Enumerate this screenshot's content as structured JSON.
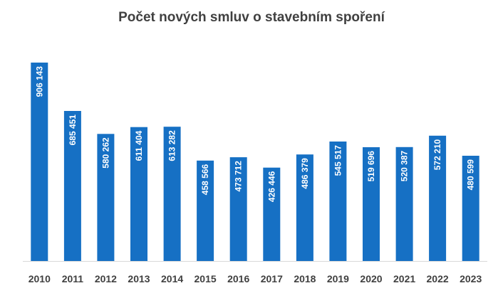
{
  "chart_data": {
    "type": "bar",
    "title": "Počet nových smluv o stavebním spoření",
    "xlabel": "",
    "ylabel": "",
    "categories": [
      "2010",
      "2011",
      "2012",
      "2013",
      "2014",
      "2015",
      "2016",
      "2017",
      "2018",
      "2019",
      "2020",
      "2021",
      "2022",
      "2023"
    ],
    "values": [
      906143,
      685451,
      580262,
      611404,
      613282,
      458566,
      473712,
      426446,
      486379,
      545517,
      519696,
      520387,
      572210,
      480599
    ],
    "value_labels": [
      "906 143",
      "685 451",
      "580 262",
      "611 404",
      "613 282",
      "458 566",
      "473 712",
      "426 446",
      "486 379",
      "545 517",
      "519 696",
      "520 387",
      "572 210",
      "480 599"
    ],
    "ylim": [
      0,
      906143
    ],
    "grid": false,
    "legend": "none",
    "colors": {
      "bar": "#1670c4",
      "axis": "#d9d9d9",
      "title": "#404040",
      "label": "#ffffff",
      "tick": "#404040"
    }
  }
}
